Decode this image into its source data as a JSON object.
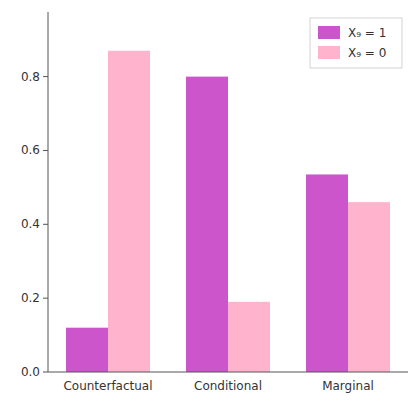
{
  "chart_data": {
    "type": "bar",
    "categories": [
      "Counterfactual",
      "Conditional",
      "Marginal"
    ],
    "series": [
      {
        "name": "X₉ = 1",
        "color": "#CC55CC",
        "values": [
          0.12,
          0.8,
          0.535
        ]
      },
      {
        "name": "X₉ = 0",
        "color": "#FFB3CC",
        "values": [
          0.87,
          0.19,
          0.46
        ]
      }
    ],
    "ylim": [
      0.0,
      0.975
    ],
    "yticks": [
      {
        "value": 0.0,
        "label": "0.0"
      },
      0.2,
      0.4,
      0.6,
      0.8
    ],
    "grid": false,
    "legend": "upper right"
  }
}
